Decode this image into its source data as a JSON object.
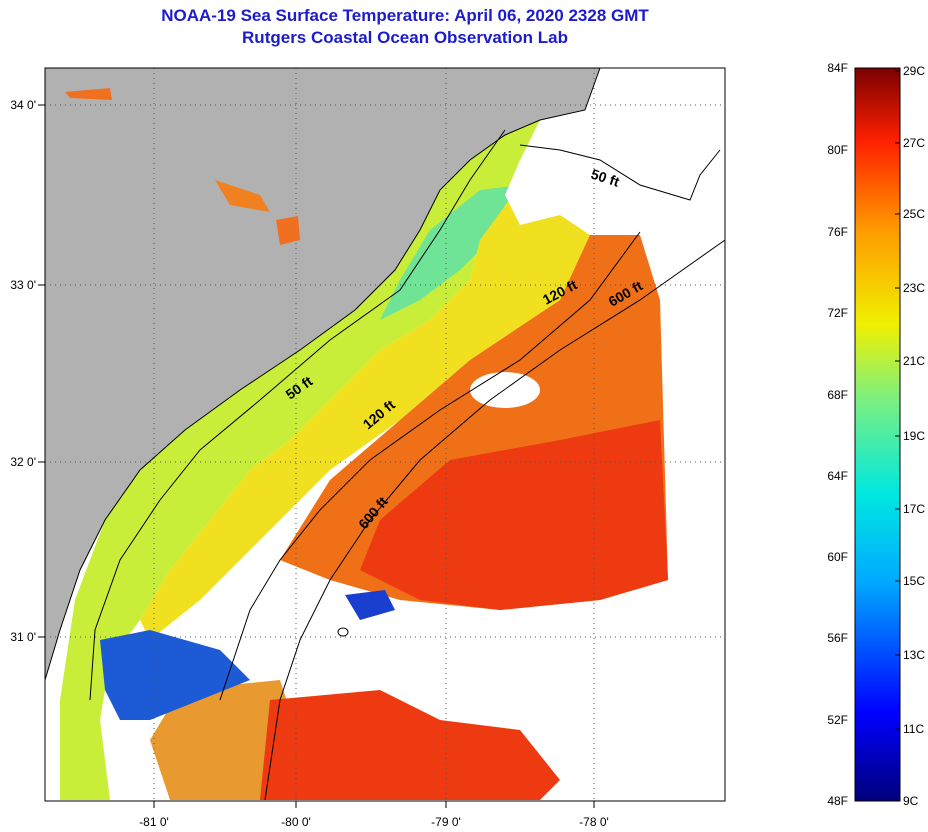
{
  "title": "NOAA-19 Sea Surface Temperature:  April 06, 2020 2328 GMT",
  "subtitle": "Rutgers Coastal Ocean Observation Lab",
  "map": {
    "lon_labels": [
      "-81 0'",
      "-80 0'",
      "-79 0'",
      "-78 0'"
    ],
    "lat_labels": [
      "34 0'",
      "33 0'",
      "32 0'",
      "31 0'"
    ],
    "contour_labels": [
      "50 ft",
      "120 ft",
      "600 ft",
      "50 ft",
      "120 ft",
      "600 ft"
    ],
    "colors": {
      "land": "#b1b1b1",
      "nodata": "#ffffff",
      "cold": "#0b26d6",
      "warm": "#ee3a10"
    }
  },
  "colorbar": {
    "f_labels": [
      "84F",
      "80F",
      "76F",
      "72F",
      "68F",
      "64F",
      "60F",
      "56F",
      "52F",
      "48F"
    ],
    "c_labels": [
      "29C",
      "27C",
      "25C",
      "23C",
      "21C",
      "19C",
      "17C",
      "15C",
      "13C",
      "11C",
      "9C"
    ]
  }
}
